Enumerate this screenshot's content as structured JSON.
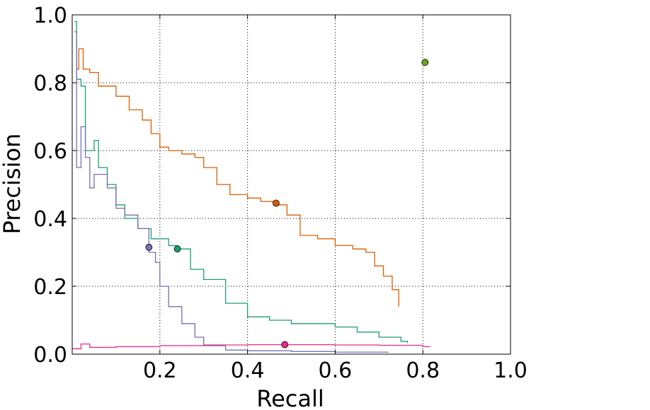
{
  "chart_data": {
    "type": "line",
    "title": "",
    "xlabel": "Recall",
    "ylabel": "Precision",
    "xlim": [
      0.0,
      1.0
    ],
    "ylim": [
      0.0,
      1.0
    ],
    "grid": true,
    "x_ticks": [
      "0.2",
      "0.4",
      "0.6",
      "0.8",
      "1.0"
    ],
    "y_ticks": [
      "0.0",
      "0.2",
      "0.4",
      "0.6",
      "0.8",
      "1.0"
    ],
    "series": [
      {
        "color": "#d95f02",
        "points": [
          [
            0.01,
            0.84
          ],
          [
            0.015,
            0.9
          ],
          [
            0.025,
            0.84
          ],
          [
            0.04,
            0.83
          ],
          [
            0.06,
            0.79
          ],
          [
            0.1,
            0.76
          ],
          [
            0.13,
            0.72
          ],
          [
            0.16,
            0.69
          ],
          [
            0.18,
            0.65
          ],
          [
            0.2,
            0.61
          ],
          [
            0.22,
            0.6
          ],
          [
            0.25,
            0.59
          ],
          [
            0.28,
            0.58
          ],
          [
            0.3,
            0.55
          ],
          [
            0.33,
            0.5
          ],
          [
            0.36,
            0.47
          ],
          [
            0.4,
            0.46
          ],
          [
            0.43,
            0.45
          ],
          [
            0.465,
            0.44
          ],
          [
            0.49,
            0.41
          ],
          [
            0.52,
            0.35
          ],
          [
            0.56,
            0.34
          ],
          [
            0.6,
            0.32
          ],
          [
            0.64,
            0.31
          ],
          [
            0.67,
            0.3
          ],
          [
            0.69,
            0.26
          ],
          [
            0.71,
            0.23
          ],
          [
            0.73,
            0.19
          ],
          [
            0.745,
            0.14
          ]
        ],
        "marker": [
          0.465,
          0.445
        ]
      },
      {
        "color": "#1b9e77",
        "points": [
          [
            0.005,
            0.98
          ],
          [
            0.01,
            0.81
          ],
          [
            0.02,
            0.79
          ],
          [
            0.03,
            0.6
          ],
          [
            0.05,
            0.63
          ],
          [
            0.06,
            0.55
          ],
          [
            0.08,
            0.5
          ],
          [
            0.1,
            0.44
          ],
          [
            0.12,
            0.4
          ],
          [
            0.15,
            0.37
          ],
          [
            0.18,
            0.34
          ],
          [
            0.22,
            0.32
          ],
          [
            0.24,
            0.31
          ],
          [
            0.27,
            0.25
          ],
          [
            0.3,
            0.22
          ],
          [
            0.35,
            0.15
          ],
          [
            0.4,
            0.11
          ],
          [
            0.45,
            0.1
          ],
          [
            0.5,
            0.09
          ],
          [
            0.6,
            0.08
          ],
          [
            0.65,
            0.065
          ],
          [
            0.7,
            0.05
          ],
          [
            0.75,
            0.038
          ],
          [
            0.765,
            0.033
          ]
        ],
        "marker": [
          0.24,
          0.31
        ]
      },
      {
        "color": "#7570b3",
        "points": [
          [
            0.005,
            0.95
          ],
          [
            0.01,
            0.55
          ],
          [
            0.02,
            0.67
          ],
          [
            0.03,
            0.58
          ],
          [
            0.04,
            0.49
          ],
          [
            0.05,
            0.53
          ],
          [
            0.08,
            0.49
          ],
          [
            0.1,
            0.43
          ],
          [
            0.12,
            0.41
          ],
          [
            0.15,
            0.37
          ],
          [
            0.175,
            0.3
          ],
          [
            0.19,
            0.27
          ],
          [
            0.2,
            0.2
          ],
          [
            0.22,
            0.14
          ],
          [
            0.25,
            0.09
          ],
          [
            0.28,
            0.05
          ],
          [
            0.3,
            0.025
          ],
          [
            0.35,
            0.012
          ],
          [
            0.4,
            0.01
          ],
          [
            0.5,
            0.008
          ],
          [
            0.6,
            0.006
          ],
          [
            0.72,
            0.004
          ]
        ],
        "marker": [
          0.175,
          0.315
        ]
      },
      {
        "color": "#e7298a",
        "points": [
          [
            0.0,
            0.016
          ],
          [
            0.02,
            0.03
          ],
          [
            0.04,
            0.02
          ],
          [
            0.1,
            0.022
          ],
          [
            0.2,
            0.025
          ],
          [
            0.3,
            0.027
          ],
          [
            0.4,
            0.028
          ],
          [
            0.5,
            0.028
          ],
          [
            0.6,
            0.027
          ],
          [
            0.7,
            0.026
          ],
          [
            0.8,
            0.022
          ],
          [
            0.815,
            0.02
          ]
        ],
        "marker": [
          0.485,
          0.028
        ]
      },
      {
        "color": "#66a61e",
        "points": [],
        "marker": [
          0.805,
          0.86
        ]
      }
    ]
  }
}
